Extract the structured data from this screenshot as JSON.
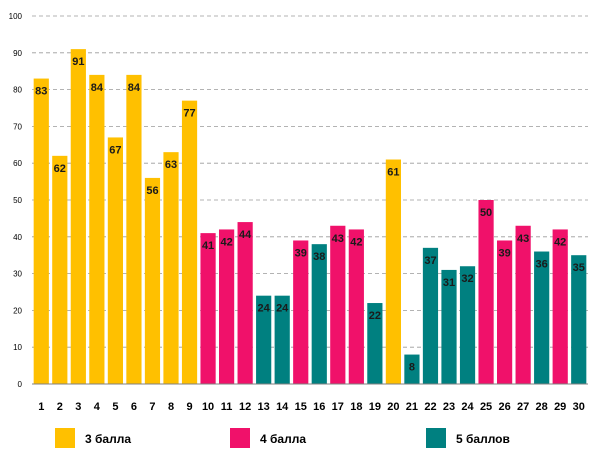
{
  "chart_data": {
    "type": "bar",
    "categories": [
      "1",
      "2",
      "3",
      "4",
      "5",
      "6",
      "7",
      "8",
      "9",
      "10",
      "11",
      "12",
      "13",
      "14",
      "15",
      "16",
      "17",
      "18",
      "19",
      "20",
      "21",
      "22",
      "23",
      "24",
      "25",
      "26",
      "27",
      "28",
      "29",
      "30"
    ],
    "values": [
      83,
      62,
      91,
      84,
      67,
      84,
      56,
      63,
      77,
      41,
      42,
      44,
      24,
      24,
      39,
      38,
      43,
      42,
      22,
      61,
      8,
      37,
      31,
      32,
      50,
      39,
      43,
      36,
      42,
      35
    ],
    "groups": [
      "3",
      "3",
      "3",
      "3",
      "3",
      "3",
      "3",
      "3",
      "3",
      "4",
      "4",
      "4",
      "5",
      "5",
      "4",
      "5",
      "4",
      "4",
      "5",
      "3",
      "5",
      "5",
      "5",
      "5",
      "4",
      "4",
      "4",
      "5",
      "4",
      "5"
    ],
    "ylim": [
      0,
      100
    ],
    "yticks": [
      0,
      10,
      20,
      30,
      40,
      50,
      60,
      70,
      80,
      90,
      100
    ],
    "grid": true,
    "legend_position": "bottom",
    "legend": [
      {
        "key": "3",
        "label": "3 балла",
        "color": "#FFC000"
      },
      {
        "key": "4",
        "label": "4 балла",
        "color": "#F0116A"
      },
      {
        "key": "5",
        "label": "5 баллов",
        "color": "#008080"
      }
    ]
  }
}
